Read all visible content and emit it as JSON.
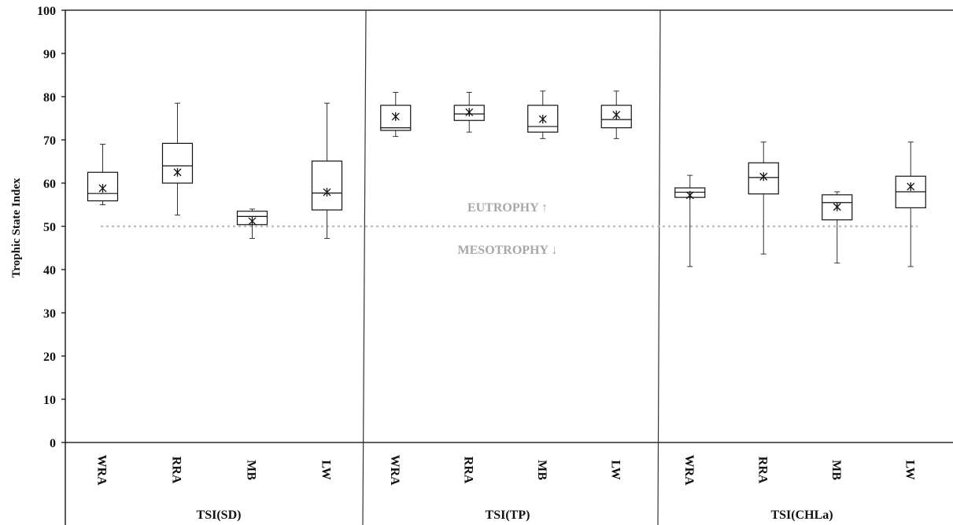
{
  "chart_data": {
    "type": "boxplot",
    "ylabel": "Trophic State Index",
    "ylim": [
      0,
      100
    ],
    "yticks": [
      0,
      10,
      20,
      30,
      40,
      50,
      60,
      70,
      80,
      90,
      100
    ],
    "threshold": 50,
    "annotations": {
      "above": "EUTROPHY ↑",
      "below": "MESOTROPHY ↓"
    },
    "groups": [
      {
        "label": "TSI(SD)",
        "boxes": [
          {
            "category": "WRA",
            "min": 55,
            "q1": 55.9,
            "median": 57.6,
            "q3": 62.5,
            "max": 69,
            "mean": 58.8
          },
          {
            "category": "RRA",
            "min": 52.6,
            "q1": 60,
            "median": 64,
            "q3": 69.2,
            "max": 78.5,
            "mean": 62.5
          },
          {
            "category": "MB",
            "min": 47.2,
            "q1": 50.4,
            "median": 52.3,
            "q3": 53.5,
            "max": 54,
            "mean": 51.2
          },
          {
            "category": "LW",
            "min": 47.2,
            "q1": 53.8,
            "median": 57.7,
            "q3": 65.1,
            "max": 78.5,
            "mean": 57.9
          }
        ]
      },
      {
        "label": "TSI(TP)",
        "boxes": [
          {
            "category": "WRA",
            "min": 70.8,
            "q1": 72.2,
            "median": 72.8,
            "q3": 78,
            "max": 81,
            "mean": 75.4
          },
          {
            "category": "RRA",
            "min": 71.8,
            "q1": 74.5,
            "median": 76,
            "q3": 78,
            "max": 81,
            "mean": 76.4
          },
          {
            "category": "MB",
            "min": 70.3,
            "q1": 71.8,
            "median": 73.1,
            "q3": 78,
            "max": 81.3,
            "mean": 74.8
          },
          {
            "category": "LW",
            "min": 70.3,
            "q1": 72.8,
            "median": 74.7,
            "q3": 78,
            "max": 81.3,
            "mean": 75.8
          }
        ]
      },
      {
        "label": "TSI(CHLa)",
        "boxes": [
          {
            "category": "WRA",
            "min": 40.7,
            "q1": 56.7,
            "median": 57.9,
            "q3": 58.9,
            "max": 61.8,
            "mean": 57.2
          },
          {
            "category": "RRA",
            "min": 43.6,
            "q1": 57.5,
            "median": 61.3,
            "q3": 64.7,
            "max": 69.5,
            "mean": 61.5
          },
          {
            "category": "MB",
            "min": 41.5,
            "q1": 51.5,
            "median": 55.5,
            "q3": 57.3,
            "max": 58,
            "mean": 54.5
          },
          {
            "category": "LW",
            "min": 40.7,
            "q1": 54.3,
            "median": 58,
            "q3": 61.6,
            "max": 69.5,
            "mean": 59.2
          }
        ]
      }
    ]
  }
}
